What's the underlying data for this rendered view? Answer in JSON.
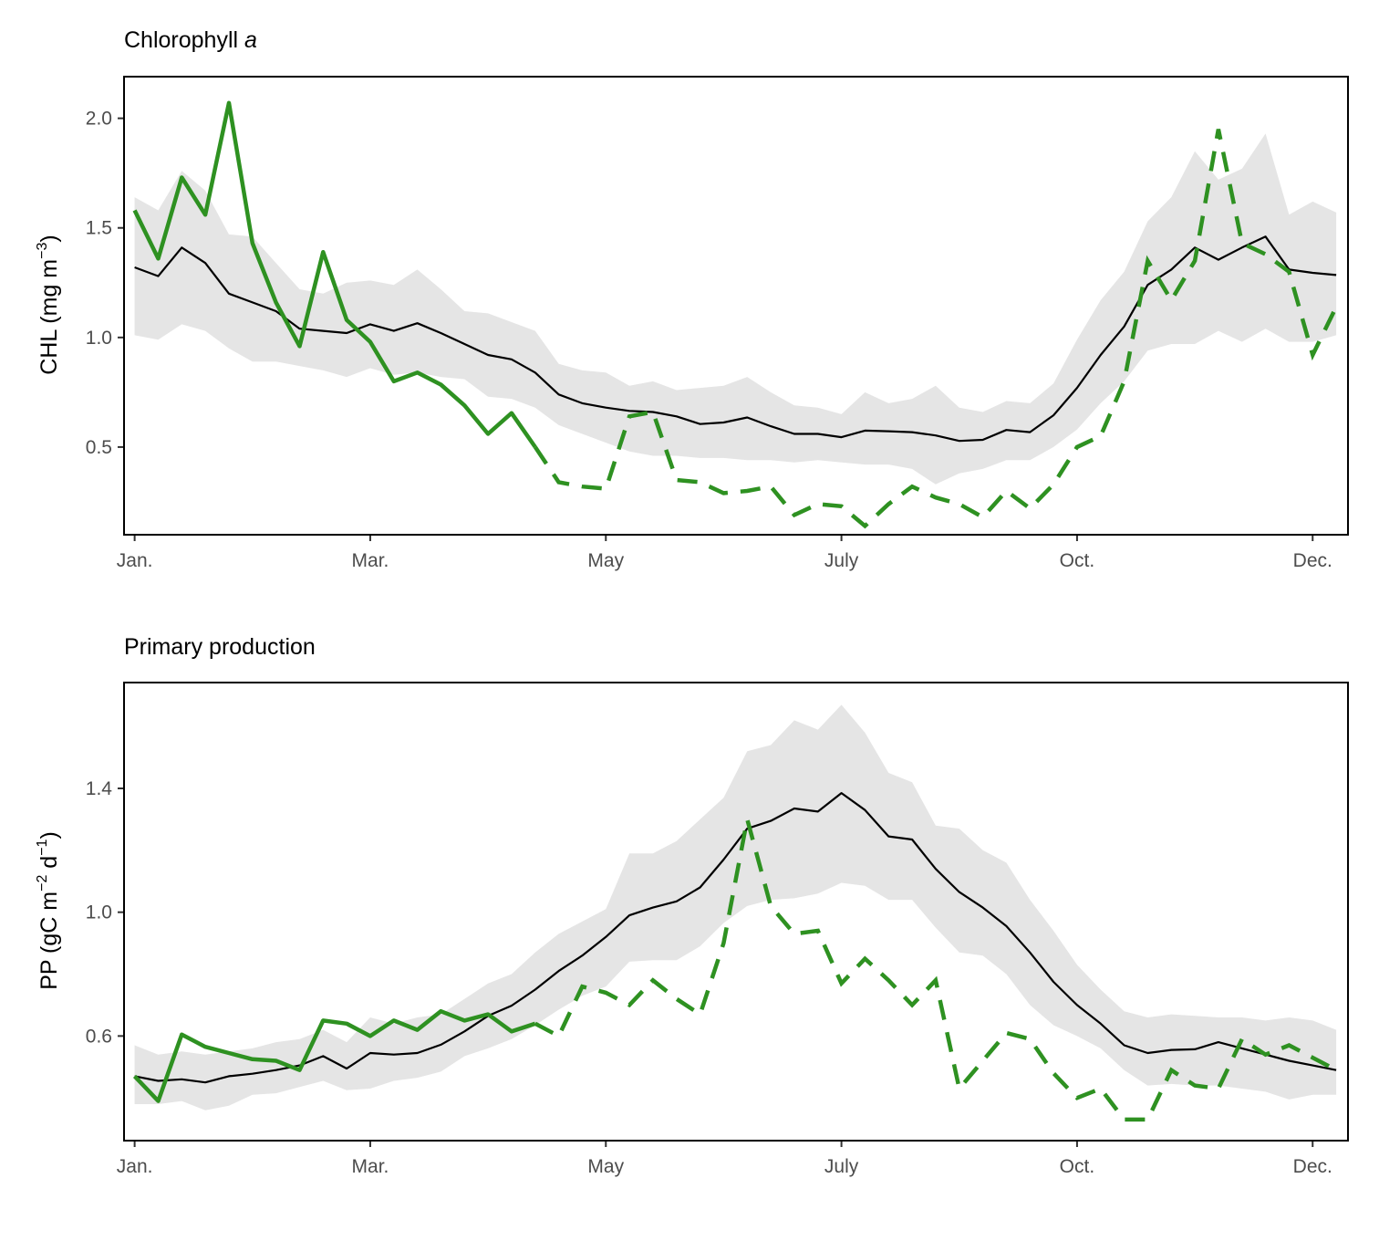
{
  "chart_data": [
    {
      "type": "line",
      "title": "Chlorophyll",
      "title_italic": "a",
      "ylabel": "CHL (mg m",
      "ylabel_exponent": "−3",
      "ylabel_close": ")",
      "xlabel": "",
      "xticks": [
        {
          "label": "Jan.",
          "week": 1
        },
        {
          "label": "Mar.",
          "week": 11
        },
        {
          "label": "May",
          "week": 21
        },
        {
          "label": "July",
          "week": 31
        },
        {
          "label": "Oct.",
          "week": 41
        },
        {
          "label": "Dec.",
          "week": 51
        }
      ],
      "yticks": [
        {
          "label": "0.5",
          "value": 0.5
        },
        {
          "label": "1.0",
          "value": 1.0
        },
        {
          "label": "1.5",
          "value": 1.5
        },
        {
          "label": "2.0",
          "value": 2.0
        }
      ],
      "xlim": [
        0.55,
        52.5
      ],
      "ylim": [
        0.1,
        2.19
      ],
      "colors": {
        "band": "#e5e5e5",
        "mean": "#000000",
        "current": "#2e9121"
      },
      "climatology": {
        "weeks": [
          1,
          2,
          3,
          4,
          5,
          6,
          7,
          8,
          9,
          10,
          11,
          12,
          13,
          14,
          15,
          16,
          17,
          18,
          19,
          20,
          21,
          22,
          23,
          24,
          25,
          26,
          27,
          28,
          29,
          30,
          31,
          32,
          33,
          34,
          35,
          36,
          37,
          38,
          39,
          40,
          41,
          42,
          43,
          44,
          45,
          46,
          47,
          48,
          49,
          50,
          51,
          52
        ],
        "mean": [
          1.32,
          1.28,
          1.41,
          1.34,
          1.2,
          1.16,
          1.12,
          1.04,
          1.03,
          1.02,
          1.06,
          1.03,
          1.065,
          1.02,
          0.97,
          0.92,
          0.9,
          0.84,
          0.74,
          0.7,
          0.68,
          0.665,
          0.66,
          0.64,
          0.605,
          0.612,
          0.635,
          0.595,
          0.56,
          0.56,
          0.545,
          0.575,
          0.572,
          0.568,
          0.553,
          0.528,
          0.533,
          0.578,
          0.568,
          0.645,
          0.77,
          0.92,
          1.05,
          1.24,
          1.31,
          1.41,
          1.355,
          1.41,
          1.46,
          1.31,
          1.295,
          1.285
        ],
        "upper": [
          1.64,
          1.58,
          1.76,
          1.67,
          1.47,
          1.46,
          1.34,
          1.22,
          1.2,
          1.25,
          1.26,
          1.24,
          1.31,
          1.22,
          1.12,
          1.11,
          1.07,
          1.03,
          0.88,
          0.85,
          0.84,
          0.78,
          0.8,
          0.76,
          0.77,
          0.78,
          0.82,
          0.75,
          0.69,
          0.68,
          0.65,
          0.75,
          0.7,
          0.72,
          0.78,
          0.68,
          0.66,
          0.71,
          0.7,
          0.79,
          0.99,
          1.17,
          1.3,
          1.53,
          1.64,
          1.85,
          1.72,
          1.77,
          1.93,
          1.56,
          1.62,
          1.57
        ],
        "lower": [
          1.01,
          0.99,
          1.06,
          1.03,
          0.95,
          0.89,
          0.89,
          0.87,
          0.85,
          0.82,
          0.86,
          0.83,
          0.84,
          0.82,
          0.81,
          0.73,
          0.72,
          0.68,
          0.6,
          0.56,
          0.52,
          0.48,
          0.46,
          0.46,
          0.45,
          0.45,
          0.44,
          0.44,
          0.43,
          0.44,
          0.43,
          0.42,
          0.42,
          0.4,
          0.33,
          0.38,
          0.4,
          0.44,
          0.44,
          0.5,
          0.58,
          0.7,
          0.8,
          0.94,
          0.97,
          0.97,
          1.03,
          0.98,
          1.04,
          0.98,
          0.98,
          1.01
        ]
      },
      "current_year": {
        "solid_weeks": [
          1,
          2,
          3,
          4,
          5,
          6,
          7,
          8,
          9,
          10,
          11,
          12,
          13,
          14,
          15,
          16,
          17,
          18
        ],
        "solid": [
          1.58,
          1.36,
          1.73,
          1.56,
          2.07,
          1.43,
          1.16,
          0.96,
          1.39,
          1.08,
          0.98,
          0.8,
          0.84,
          0.785,
          0.69,
          0.56,
          0.655,
          0.5
        ],
        "dashed_weeks": [
          18,
          19,
          20,
          21,
          22,
          23,
          24,
          25,
          26,
          27,
          28,
          29,
          30,
          31,
          32,
          33,
          34,
          35,
          36,
          37,
          38,
          39,
          40,
          41,
          42,
          43,
          44,
          45,
          46,
          47,
          48,
          49,
          50,
          51,
          52
        ],
        "dashed": [
          0.5,
          0.34,
          0.32,
          0.31,
          0.64,
          0.66,
          0.35,
          0.34,
          0.29,
          0.3,
          0.32,
          0.19,
          0.24,
          0.23,
          0.14,
          0.24,
          0.32,
          0.27,
          0.24,
          0.18,
          0.3,
          0.22,
          0.33,
          0.5,
          0.55,
          0.8,
          1.35,
          1.17,
          1.35,
          1.95,
          1.43,
          1.38,
          1.3,
          0.92,
          1.14
        ]
      }
    },
    {
      "type": "line",
      "title": "Primary production",
      "ylabel_parts": [
        "PP (gC m",
        "−2",
        " d",
        "−1",
        ")"
      ],
      "xlabel": "",
      "xticks": [
        {
          "label": "Jan.",
          "week": 1
        },
        {
          "label": "Mar.",
          "week": 11
        },
        {
          "label": "May",
          "week": 21
        },
        {
          "label": "July",
          "week": 31
        },
        {
          "label": "Oct.",
          "week": 41
        },
        {
          "label": "Dec.",
          "week": 51
        }
      ],
      "yticks": [
        {
          "label": "0.6",
          "value": 0.6
        },
        {
          "label": "1.0",
          "value": 1.0
        },
        {
          "label": "1.4",
          "value": 1.4
        }
      ],
      "xlim": [
        0.55,
        52.5
      ],
      "ylim": [
        0.262,
        1.742
      ],
      "colors": {
        "band": "#e5e5e5",
        "mean": "#000000",
        "current": "#2e9121"
      },
      "climatology": {
        "weeks": [
          1,
          2,
          3,
          4,
          5,
          6,
          7,
          8,
          9,
          10,
          11,
          12,
          13,
          14,
          15,
          16,
          17,
          18,
          19,
          20,
          21,
          22,
          23,
          24,
          25,
          26,
          27,
          28,
          29,
          30,
          31,
          32,
          33,
          34,
          35,
          36,
          37,
          38,
          39,
          40,
          41,
          42,
          43,
          44,
          45,
          46,
          47,
          48,
          49,
          50,
          51,
          52
        ],
        "mean": [
          0.47,
          0.455,
          0.46,
          0.45,
          0.47,
          0.478,
          0.49,
          0.505,
          0.535,
          0.495,
          0.545,
          0.54,
          0.545,
          0.572,
          0.615,
          0.665,
          0.698,
          0.75,
          0.81,
          0.86,
          0.92,
          0.99,
          1.015,
          1.035,
          1.08,
          1.17,
          1.27,
          1.295,
          1.335,
          1.325,
          1.385,
          1.33,
          1.245,
          1.235,
          1.14,
          1.065,
          1.015,
          0.955,
          0.87,
          0.775,
          0.7,
          0.64,
          0.57,
          0.545,
          0.555,
          0.557,
          0.58,
          0.56,
          0.54,
          0.52,
          0.505,
          0.49
        ],
        "upper": [
          0.57,
          0.54,
          0.55,
          0.54,
          0.55,
          0.56,
          0.58,
          0.59,
          0.62,
          0.58,
          0.66,
          0.64,
          0.66,
          0.67,
          0.72,
          0.77,
          0.8,
          0.87,
          0.93,
          0.97,
          1.01,
          1.19,
          1.19,
          1.23,
          1.3,
          1.37,
          1.52,
          1.54,
          1.62,
          1.59,
          1.67,
          1.58,
          1.45,
          1.42,
          1.28,
          1.27,
          1.2,
          1.16,
          1.04,
          0.94,
          0.83,
          0.75,
          0.68,
          0.66,
          0.67,
          0.665,
          0.66,
          0.66,
          0.65,
          0.66,
          0.65,
          0.62
        ],
        "lower": [
          0.38,
          0.38,
          0.39,
          0.36,
          0.375,
          0.41,
          0.415,
          0.435,
          0.455,
          0.425,
          0.43,
          0.455,
          0.465,
          0.485,
          0.535,
          0.56,
          0.59,
          0.635,
          0.685,
          0.73,
          0.76,
          0.84,
          0.845,
          0.845,
          0.89,
          0.965,
          1.02,
          1.04,
          1.045,
          1.06,
          1.095,
          1.085,
          1.04,
          1.04,
          0.95,
          0.87,
          0.86,
          0.8,
          0.7,
          0.635,
          0.6,
          0.56,
          0.49,
          0.44,
          0.445,
          0.44,
          0.44,
          0.43,
          0.42,
          0.395,
          0.41,
          0.41
        ]
      },
      "current_year": {
        "solid_weeks": [
          1,
          2,
          3,
          4,
          5,
          6,
          7,
          8,
          9,
          10,
          11,
          12,
          13,
          14,
          15,
          16,
          17,
          18
        ],
        "solid": [
          0.47,
          0.39,
          0.605,
          0.565,
          0.545,
          0.525,
          0.52,
          0.49,
          0.65,
          0.64,
          0.6,
          0.65,
          0.62,
          0.68,
          0.65,
          0.67,
          0.615,
          0.64
        ],
        "dashed_weeks": [
          18,
          19,
          20,
          21,
          22,
          23,
          24,
          25,
          26,
          27,
          28,
          29,
          30,
          31,
          32,
          33,
          34,
          35,
          36,
          37,
          38,
          39,
          40,
          41,
          42,
          43,
          44,
          45,
          46,
          47,
          48,
          49,
          50,
          51,
          52
        ],
        "dashed": [
          0.64,
          0.6,
          0.76,
          0.74,
          0.7,
          0.78,
          0.72,
          0.67,
          0.9,
          1.3,
          1.02,
          0.93,
          0.94,
          0.77,
          0.85,
          0.78,
          0.7,
          0.78,
          0.43,
          0.52,
          0.61,
          0.59,
          0.48,
          0.4,
          0.43,
          0.33,
          0.33,
          0.49,
          0.44,
          0.43,
          0.59,
          0.54,
          0.57,
          0.53,
          0.49
        ]
      }
    }
  ]
}
